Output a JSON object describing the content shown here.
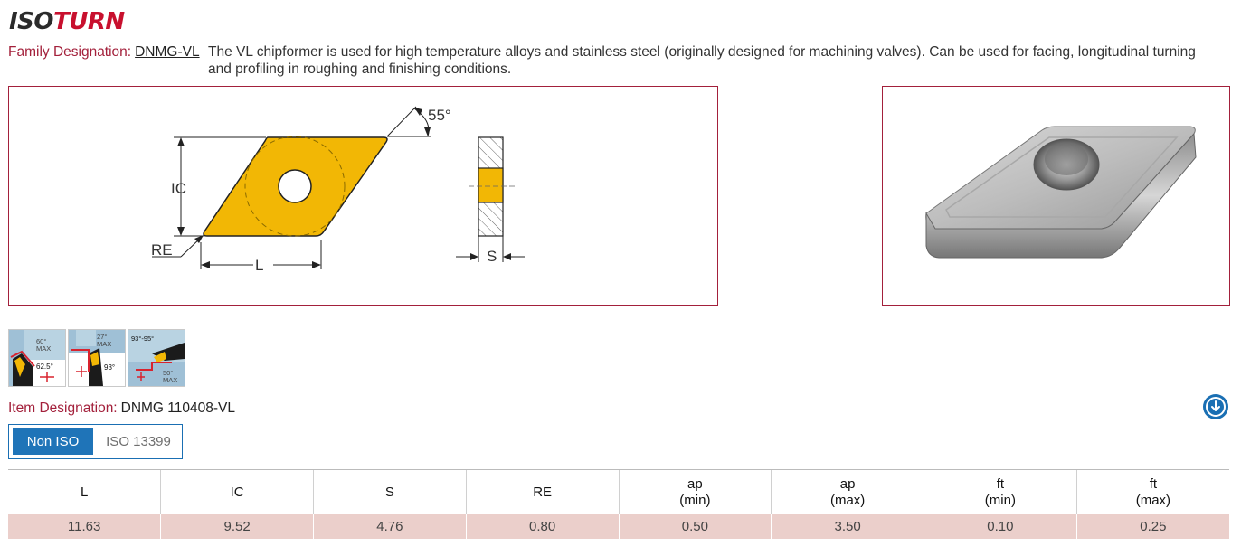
{
  "brand": {
    "part1": "ISO",
    "part2": "TURN"
  },
  "family": {
    "label": "Family Designation:",
    "code": "DNMG-VL",
    "description_line1": "The VL chipformer is used for high temperature alloys and stainless steel (originally designed for machining valves). Can be used for facing, longitudinal turning",
    "description_line2": "and profiling in roughing and finishing conditions."
  },
  "drawing": {
    "angle": "55°",
    "ic": "IC",
    "re": "RE",
    "l": "L",
    "s": "S",
    "colors": {
      "insert": "#f2b705",
      "outline": "#222222"
    }
  },
  "applications": {
    "thumb1": {
      "top": "60°",
      "max": "MAX",
      "angle": "62.5°"
    },
    "thumb2": {
      "top": "27°",
      "max": "MAX",
      "angle": "93°"
    },
    "thumb3": {
      "range": "93°-95°",
      "bottom": "50°",
      "max": "MAX"
    }
  },
  "item": {
    "label": "Item Designation:",
    "value": "DNMG 110408-VL"
  },
  "tabs": {
    "active": "Non ISO",
    "inactive": "ISO 13399"
  },
  "table": {
    "headers": [
      {
        "l1": "L",
        "l2": ""
      },
      {
        "l1": "IC",
        "l2": ""
      },
      {
        "l1": "S",
        "l2": ""
      },
      {
        "l1": "RE",
        "l2": ""
      },
      {
        "l1": "ap",
        "l2": "(min)"
      },
      {
        "l1": "ap",
        "l2": "(max)"
      },
      {
        "l1": "ft",
        "l2": "(min)"
      },
      {
        "l1": "ft",
        "l2": "(max)"
      }
    ],
    "row": [
      "11.63",
      "9.52",
      "4.76",
      "0.80",
      "0.50",
      "3.50",
      "0.10",
      "0.25"
    ]
  },
  "colors": {
    "accent": "#a3203b",
    "brand_red": "#c8102e",
    "blue": "#1f74b8",
    "row_bg": "#ebcfcb"
  }
}
